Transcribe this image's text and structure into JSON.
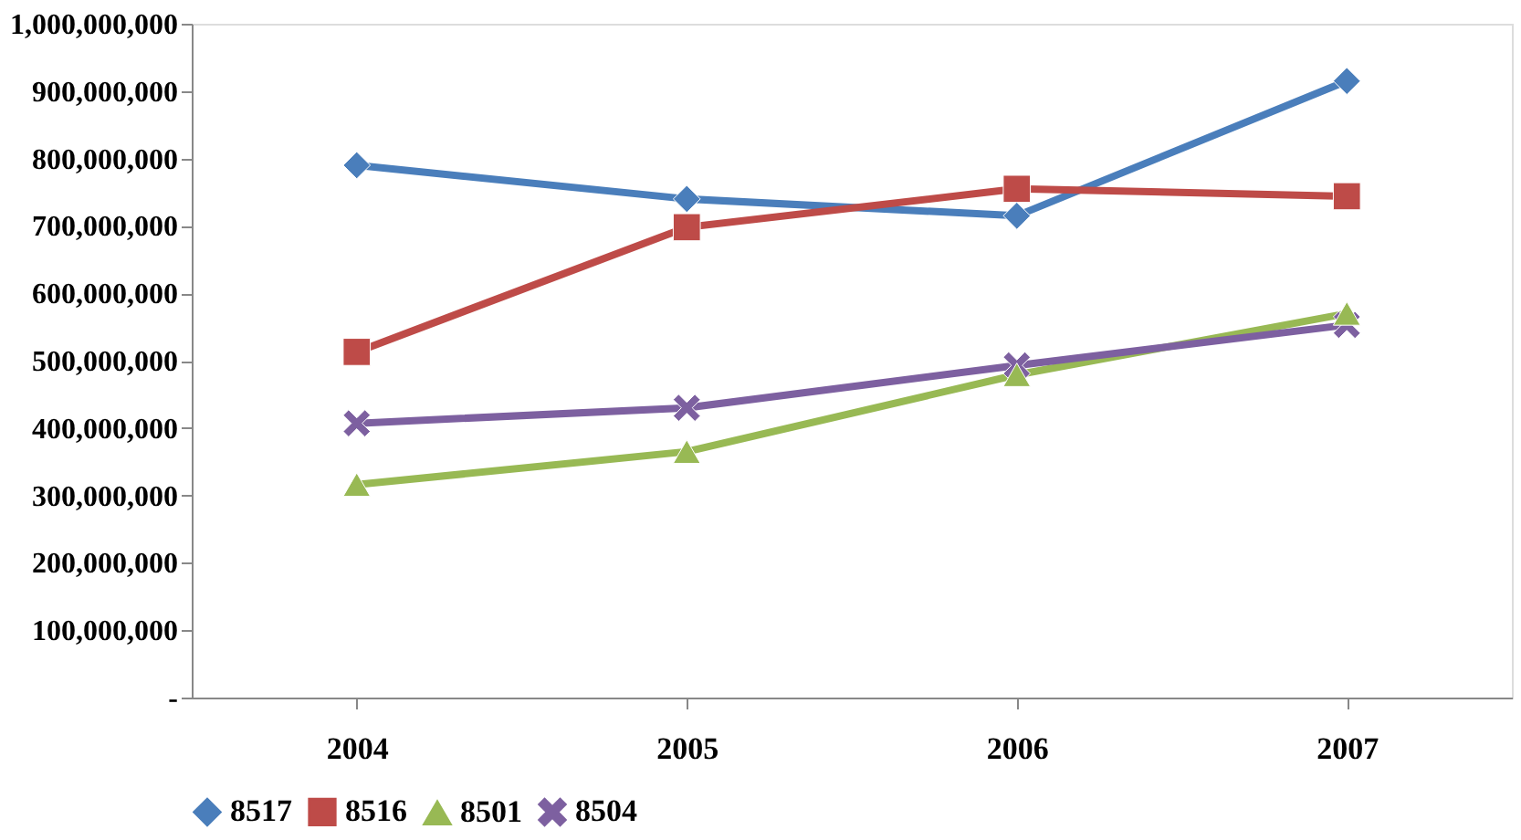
{
  "chart_data": {
    "type": "line",
    "categories": [
      "2004",
      "2005",
      "2006",
      "2007"
    ],
    "series": [
      {
        "name": "8517",
        "color": "#4a7ebb",
        "marker": "diamond",
        "values": [
          790000000,
          740000000,
          715000000,
          915000000
        ]
      },
      {
        "name": "8516",
        "color": "#be4b48",
        "marker": "square",
        "values": [
          513000000,
          698000000,
          755000000,
          744000000
        ]
      },
      {
        "name": "8501",
        "color": "#98b954",
        "marker": "triangle",
        "values": [
          316000000,
          365000000,
          479000000,
          570000000
        ]
      },
      {
        "name": "8504",
        "color": "#7d60a0",
        "marker": "cross",
        "values": [
          407000000,
          430000000,
          493000000,
          553000000
        ]
      }
    ],
    "ylim": [
      0,
      1000000000
    ],
    "yticks": [
      {
        "value": 0,
        "label": "-"
      },
      {
        "value": 100000000,
        "label": "100,000,000"
      },
      {
        "value": 200000000,
        "label": "200,000,000"
      },
      {
        "value": 300000000,
        "label": "300,000,000"
      },
      {
        "value": 400000000,
        "label": "400,000,000"
      },
      {
        "value": 500000000,
        "label": "500,000,000"
      },
      {
        "value": 600000000,
        "label": "600,000,000"
      },
      {
        "value": 700000000,
        "label": "700,000,000"
      },
      {
        "value": 800000000,
        "label": "800,000,000"
      },
      {
        "value": 900000000,
        "label": "900,000,000"
      },
      {
        "value": 1000000000,
        "label": "1,000,000,000"
      }
    ],
    "grid": false,
    "legend": "bottom"
  }
}
